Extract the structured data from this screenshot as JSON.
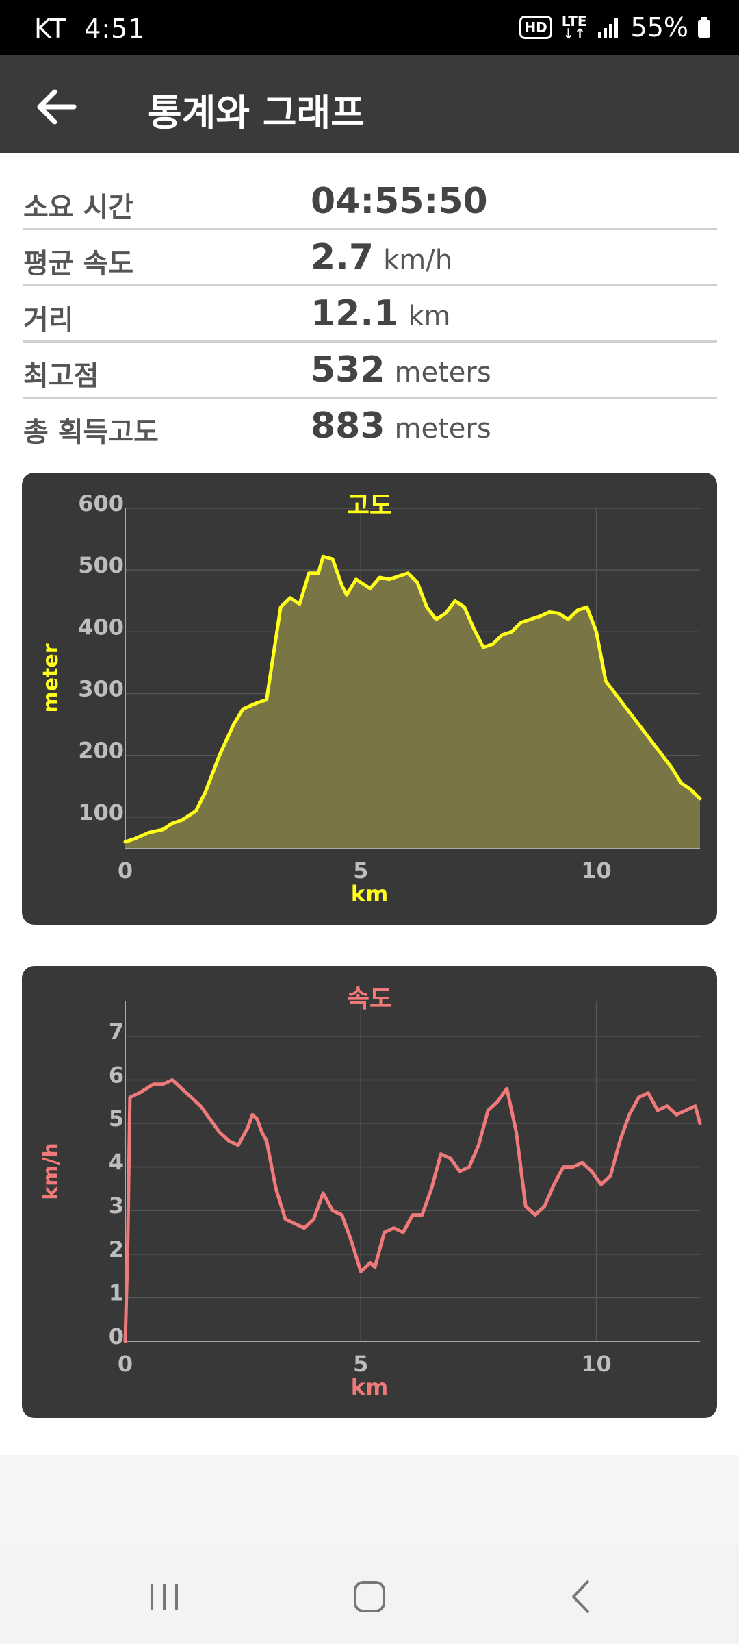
{
  "status_bar": {
    "carrier": "KT",
    "time": "4:51",
    "hd": "HD",
    "network": "LTE",
    "battery": "55%"
  },
  "header": {
    "title": "통계와 그래프"
  },
  "stats": [
    {
      "label": "소요 시간",
      "value": "04:55:50",
      "unit": ""
    },
    {
      "label": "평균 속도",
      "value": "2.7",
      "unit": "km/h"
    },
    {
      "label": "거리",
      "value": "12.1",
      "unit": "km"
    },
    {
      "label": "최고점",
      "value": "532",
      "unit": "meters"
    },
    {
      "label": "총 획득고도",
      "value": "883",
      "unit": "meters"
    }
  ],
  "chart_data": [
    {
      "type": "area",
      "title": "고도",
      "xlabel": "km",
      "ylabel": "meter",
      "xlim": [
        0,
        12.2
      ],
      "ylim": [
        50,
        600
      ],
      "xticks": [
        0,
        5,
        10
      ],
      "yticks": [
        100,
        200,
        300,
        400,
        500,
        600
      ],
      "grid": true,
      "line_color": "#ffff1a",
      "fill_color": "#7a7545",
      "x": [
        0,
        0.2,
        0.5,
        0.8,
        1.0,
        1.2,
        1.5,
        1.7,
        2.0,
        2.3,
        2.5,
        2.8,
        3.0,
        3.1,
        3.3,
        3.5,
        3.7,
        3.9,
        4.1,
        4.2,
        4.4,
        4.6,
        4.7,
        4.9,
        5.0,
        5.2,
        5.4,
        5.6,
        5.8,
        6.0,
        6.2,
        6.4,
        6.6,
        6.8,
        7.0,
        7.2,
        7.4,
        7.6,
        7.8,
        8.0,
        8.2,
        8.4,
        8.6,
        8.8,
        9.0,
        9.2,
        9.4,
        9.6,
        9.8,
        10.0,
        10.2,
        10.4,
        10.6,
        10.8,
        11.0,
        11.2,
        11.4,
        11.6,
        11.8,
        12.0,
        12.2
      ],
      "values": [
        60,
        65,
        75,
        80,
        90,
        95,
        110,
        140,
        200,
        250,
        275,
        285,
        290,
        340,
        440,
        455,
        445,
        495,
        495,
        522,
        518,
        475,
        460,
        485,
        480,
        470,
        488,
        485,
        490,
        495,
        480,
        440,
        420,
        430,
        450,
        440,
        405,
        375,
        380,
        395,
        400,
        415,
        420,
        425,
        432,
        430,
        420,
        435,
        440,
        400,
        320,
        300,
        280,
        260,
        240,
        220,
        200,
        180,
        155,
        145,
        130
      ]
    },
    {
      "type": "line",
      "title": "속도",
      "xlabel": "km",
      "ylabel": "km/h",
      "xlim": [
        0,
        12.2
      ],
      "ylim": [
        0,
        7.8
      ],
      "xticks": [
        0,
        5,
        10
      ],
      "yticks": [
        0,
        1,
        2,
        3,
        4,
        5,
        6,
        7
      ],
      "grid": true,
      "line_color": "#f07a7a",
      "x": [
        0,
        0.05,
        0.1,
        0.3,
        0.6,
        0.8,
        1.0,
        1.2,
        1.4,
        1.6,
        1.8,
        2.0,
        2.2,
        2.4,
        2.6,
        2.7,
        2.8,
        2.9,
        3.0,
        3.2,
        3.4,
        3.6,
        3.8,
        4.0,
        4.2,
        4.4,
        4.6,
        4.8,
        5.0,
        5.2,
        5.3,
        5.5,
        5.7,
        5.9,
        6.1,
        6.3,
        6.5,
        6.7,
        6.9,
        7.1,
        7.3,
        7.5,
        7.7,
        7.9,
        8.1,
        8.3,
        8.5,
        8.7,
        8.9,
        9.1,
        9.3,
        9.5,
        9.7,
        9.9,
        10.1,
        10.3,
        10.5,
        10.7,
        10.9,
        11.1,
        11.3,
        11.5,
        11.7,
        11.9,
        12.1,
        12.2
      ],
      "values": [
        0,
        2.0,
        5.6,
        5.7,
        5.9,
        5.9,
        6.0,
        5.8,
        5.6,
        5.4,
        5.1,
        4.8,
        4.6,
        4.5,
        4.9,
        5.2,
        5.1,
        4.8,
        4.6,
        3.5,
        2.8,
        2.7,
        2.6,
        2.8,
        3.4,
        3.0,
        2.9,
        2.3,
        1.6,
        1.8,
        1.7,
        2.5,
        2.6,
        2.5,
        2.9,
        2.9,
        3.5,
        4.3,
        4.2,
        3.9,
        4.0,
        4.5,
        5.3,
        5.5,
        5.8,
        4.8,
        3.1,
        2.9,
        3.1,
        3.6,
        4.0,
        4.0,
        4.1,
        3.9,
        3.6,
        3.8,
        4.6,
        5.2,
        5.6,
        5.7,
        5.3,
        5.4,
        5.2,
        5.3,
        5.4,
        5.0
      ]
    }
  ],
  "nav": {
    "recents": "recents",
    "home": "home",
    "back": "back"
  }
}
